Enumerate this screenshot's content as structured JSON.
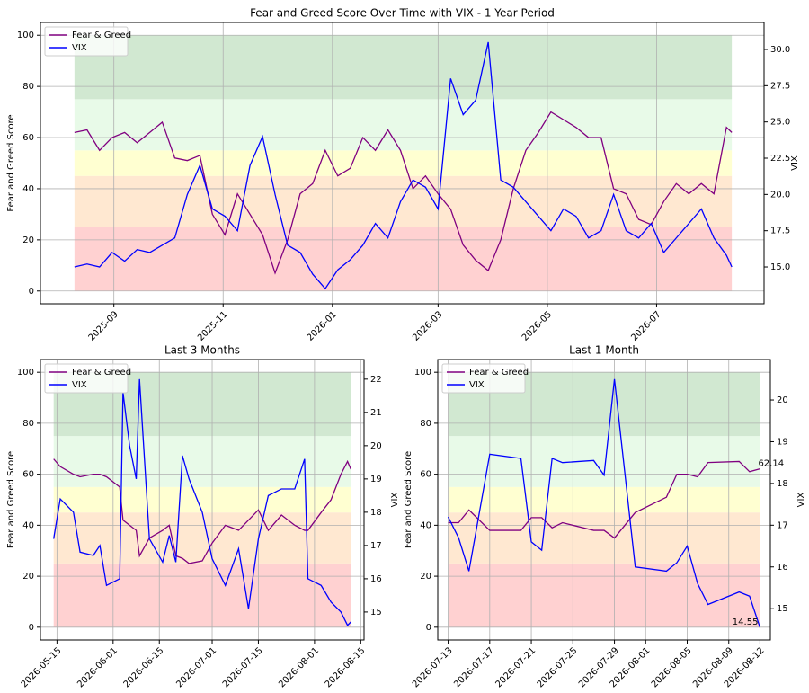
{
  "chart_data": [
    {
      "type": "line",
      "title": "Fear and Greed Score Over Time with VIX - 1 Year Period",
      "ylabel": "Fear and Greed Score",
      "y2label": "VIX",
      "x": [
        "2025-08-10",
        "2025-08-17",
        "2025-08-24",
        "2025-08-31",
        "2025-09-07",
        "2025-09-14",
        "2025-09-21",
        "2025-09-28",
        "2025-10-05",
        "2025-10-12",
        "2025-10-19",
        "2025-10-26",
        "2025-11-02",
        "2025-11-09",
        "2025-11-16",
        "2025-11-23",
        "2025-11-30",
        "2025-12-07",
        "2025-12-14",
        "2025-12-21",
        "2025-12-28",
        "2026-01-04",
        "2026-01-11",
        "2026-01-18",
        "2026-01-25",
        "2026-02-01",
        "2026-02-08",
        "2026-02-15",
        "2026-02-22",
        "2026-03-01",
        "2026-03-08",
        "2026-03-15",
        "2026-03-22",
        "2026-03-29",
        "2026-04-05",
        "2026-04-12",
        "2026-04-19",
        "2026-04-26",
        "2026-05-03",
        "2026-05-10",
        "2026-05-17",
        "2026-05-24",
        "2026-05-31",
        "2026-06-07",
        "2026-06-14",
        "2026-06-21",
        "2026-06-28",
        "2026-07-05",
        "2026-07-12",
        "2026-07-19",
        "2026-07-26",
        "2026-08-02",
        "2026-08-09",
        "2026-08-12"
      ],
      "series": [
        {
          "name": "Fear & Greed",
          "color": "#800080",
          "axis": "y",
          "values": [
            62,
            63,
            55,
            60,
            62,
            58,
            62,
            66,
            52,
            51,
            53,
            30,
            22,
            38,
            30,
            22,
            7,
            20,
            38,
            42,
            55,
            45,
            48,
            60,
            55,
            63,
            55,
            40,
            45,
            38,
            32,
            18,
            12,
            8,
            20,
            40,
            55,
            62,
            70,
            67,
            64,
            60,
            60,
            40,
            38,
            28,
            26,
            35,
            42,
            38,
            42,
            38,
            64,
            62
          ]
        },
        {
          "name": "VIX",
          "color": "#0000ff",
          "axis": "y2",
          "values": [
            15.0,
            15.2,
            15.0,
            16.0,
            15.4,
            16.2,
            16.0,
            16.5,
            17.0,
            20.0,
            22.0,
            19.0,
            18.5,
            17.5,
            22.0,
            24.0,
            20.0,
            16.5,
            16.0,
            14.5,
            13.5,
            14.8,
            15.5,
            16.5,
            18.0,
            17.0,
            19.5,
            21.0,
            20.5,
            19.0,
            28.0,
            25.5,
            26.5,
            30.5,
            21.0,
            20.5,
            19.5,
            18.5,
            17.5,
            19.0,
            18.5,
            17.0,
            17.5,
            20.0,
            17.5,
            17.0,
            18.0,
            16.0,
            17.0,
            18.0,
            19.0,
            17.0,
            15.8,
            15.0
          ]
        }
      ],
      "xlim": [
        "2025-07-22",
        "2026-08-30"
      ],
      "xticks": [
        {
          "value": "2025-09-01",
          "label": "2025-09"
        },
        {
          "value": "2025-11-01",
          "label": "2025-11"
        },
        {
          "value": "2026-01-01",
          "label": "2026-01"
        },
        {
          "value": "2026-03-01",
          "label": "2026-03"
        },
        {
          "value": "2026-05-01",
          "label": "2026-05"
        },
        {
          "value": "2026-07-01",
          "label": "2026-07"
        }
      ],
      "ylim": [
        -5,
        105
      ],
      "yticks": [
        0,
        20,
        40,
        60,
        80,
        100
      ],
      "y2lim": [
        12.46,
        31.86
      ],
      "y2ticks": [
        {
          "value": 15,
          "label": "15.0"
        },
        {
          "value": 17.5,
          "label": "17.5"
        },
        {
          "value": 20,
          "label": "20.0"
        },
        {
          "value": 22.5,
          "label": "22.5"
        },
        {
          "value": 25,
          "label": "25.0"
        },
        {
          "value": 27.5,
          "label": "27.5"
        },
        {
          "value": 30,
          "label": "30.0"
        }
      ],
      "bands": [
        {
          "from": 0,
          "to": 25,
          "color": "#ffcccc"
        },
        {
          "from": 25,
          "to": 45,
          "color": "#ffe6cc"
        },
        {
          "from": 45,
          "to": 55,
          "color": "#ffffcc"
        },
        {
          "from": 55,
          "to": 75,
          "color": "#e6f9e6"
        },
        {
          "from": 75,
          "to": 100,
          "color": "#cce6cc"
        }
      ],
      "grid": true,
      "legend": "upper left"
    },
    {
      "type": "line",
      "title": "Last 3 Months",
      "ylabel": "Fear and Greed Score",
      "y2label": "VIX",
      "x": [
        "2026-05-14",
        "2026-05-16",
        "2026-05-20",
        "2026-05-22",
        "2026-05-26",
        "2026-05-28",
        "2026-05-30",
        "2026-06-03",
        "2026-06-04",
        "2026-06-06",
        "2026-06-08",
        "2026-06-09",
        "2026-06-12",
        "2026-06-16",
        "2026-06-18",
        "2026-06-20",
        "2026-06-22",
        "2026-06-24",
        "2026-06-28",
        "2026-07-01",
        "2026-07-05",
        "2026-07-09",
        "2026-07-12",
        "2026-07-15",
        "2026-07-18",
        "2026-07-22",
        "2026-07-26",
        "2026-07-29",
        "2026-07-30",
        "2026-08-03",
        "2026-08-06",
        "2026-08-09",
        "2026-08-11",
        "2026-08-12"
      ],
      "series": [
        {
          "name": "Fear & Greed",
          "color": "#800080",
          "axis": "y",
          "values": [
            66,
            63,
            60,
            59,
            60,
            60,
            59,
            55,
            42,
            40,
            38,
            28,
            35,
            38,
            40,
            28,
            27,
            25,
            26,
            33,
            40,
            38,
            42,
            46,
            38,
            44,
            40,
            38,
            38,
            45,
            50,
            60,
            65,
            62
          ]
        },
        {
          "name": "VIX",
          "color": "#0000ff",
          "axis": "y2",
          "values": [
            17.2,
            18.4,
            18.0,
            16.8,
            16.7,
            17.0,
            15.8,
            16.0,
            21.6,
            20.0,
            19.0,
            22.0,
            17.2,
            16.5,
            17.3,
            16.5,
            19.7,
            19.0,
            18.0,
            16.6,
            15.8,
            16.9,
            15.1,
            17.2,
            18.5,
            18.7,
            18.7,
            19.6,
            16.0,
            15.8,
            15.3,
            15.0,
            14.6,
            14.7
          ]
        }
      ],
      "xlim": [
        "2026-05-10",
        "2026-08-16"
      ],
      "xticks": [
        "2026-05-15",
        "2026-06-01",
        "2026-06-15",
        "2026-07-01",
        "2026-07-15",
        "2026-08-01",
        "2026-08-15"
      ],
      "ylim": [
        -5,
        105
      ],
      "yticks": [
        0,
        20,
        40,
        60,
        80,
        100
      ],
      "y2lim": [
        14.16,
        22.59
      ],
      "y2ticks": [
        15,
        16,
        17,
        18,
        19,
        20,
        21,
        22
      ],
      "bands": [
        {
          "from": 0,
          "to": 25,
          "color": "#ffcccc"
        },
        {
          "from": 25,
          "to": 45,
          "color": "#ffe6cc"
        },
        {
          "from": 45,
          "to": 55,
          "color": "#ffffcc"
        },
        {
          "from": 55,
          "to": 75,
          "color": "#e6f9e6"
        },
        {
          "from": 75,
          "to": 100,
          "color": "#cce6cc"
        }
      ],
      "grid": true,
      "legend": "upper left"
    },
    {
      "type": "line",
      "title": "Last 1 Month",
      "ylabel": "Fear and Greed Score",
      "y2label": "VIX",
      "x": [
        "2026-07-13",
        "2026-07-14",
        "2026-07-15",
        "2026-07-17",
        "2026-07-20",
        "2026-07-21",
        "2026-07-22",
        "2026-07-23",
        "2026-07-24",
        "2026-07-27",
        "2026-07-28",
        "2026-07-29",
        "2026-07-31",
        "2026-08-03",
        "2026-08-04",
        "2026-08-05",
        "2026-08-06",
        "2026-08-07",
        "2026-08-10",
        "2026-08-11",
        "2026-08-12"
      ],
      "series": [
        {
          "name": "Fear & Greed",
          "color": "#800080",
          "axis": "y",
          "values": [
            41,
            41,
            46,
            38,
            38,
            43,
            43,
            39,
            41,
            38,
            38,
            35,
            45,
            51,
            60,
            60,
            59,
            64.6,
            65,
            61,
            62.14
          ]
        },
        {
          "name": "VIX",
          "color": "#0000ff",
          "axis": "y2",
          "values": [
            17.2,
            16.7,
            15.9,
            18.7,
            18.6,
            16.6,
            16.4,
            18.6,
            18.5,
            18.55,
            18.2,
            20.5,
            16.0,
            15.9,
            16.1,
            16.5,
            15.6,
            15.1,
            15.4,
            15.3,
            14.55
          ]
        }
      ],
      "xlim": [
        "2026-07-12",
        "2026-08-13"
      ],
      "xticks": [
        "2026-07-13",
        "2026-07-17",
        "2026-07-21",
        "2026-07-25",
        "2026-07-29",
        "2026-08-01",
        "2026-08-05",
        "2026-08-09",
        "2026-08-12"
      ],
      "ylim": [
        -5,
        105
      ],
      "yticks": [
        0,
        20,
        40,
        60,
        80,
        100
      ],
      "y2lim": [
        14.25,
        20.97
      ],
      "y2ticks": [
        15,
        16,
        17,
        18,
        19,
        20
      ],
      "bands": [
        {
          "from": 0,
          "to": 25,
          "color": "#ffcccc"
        },
        {
          "from": 25,
          "to": 45,
          "color": "#ffe6cc"
        },
        {
          "from": 45,
          "to": 55,
          "color": "#ffffcc"
        },
        {
          "from": 55,
          "to": 75,
          "color": "#e6f9e6"
        },
        {
          "from": 75,
          "to": 100,
          "color": "#cce6cc"
        }
      ],
      "grid": true,
      "legend": "upper left",
      "annotations": [
        {
          "text": "62.14",
          "x": "2026-08-12",
          "y": 62.14,
          "axis": "y",
          "color": "#800080"
        },
        {
          "text": "14.55",
          "x": "2026-08-12",
          "y": 14.55,
          "axis": "y2",
          "color": "#0000ff"
        }
      ]
    }
  ]
}
